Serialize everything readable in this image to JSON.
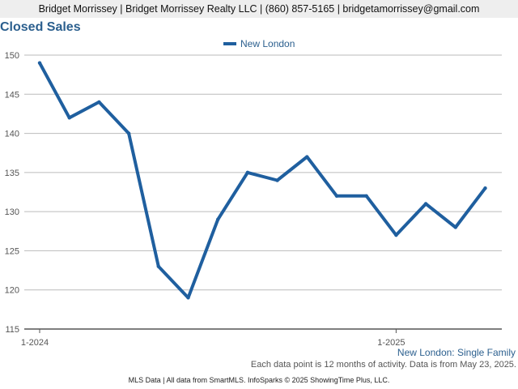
{
  "header": {
    "text": "Bridget Morrissey | Bridget Morrissey Realty LLC | (860) 857-5165 | bridgetamorrissey@gmail.com"
  },
  "footer": {
    "note": "Each data point is 12 months of activity. Data is from May 23, 2025.",
    "source": "MLS Data | All data from SmartMLS. InfoSparks © 2025 ShowingTime Plus, LLC."
  },
  "colors": {
    "series": "#1f5f9f",
    "title": "#2b5f8e",
    "grid": "#bbbbbb"
  },
  "chart_data": {
    "type": "line",
    "title": "Closed Sales",
    "caption": "New London: Single Family",
    "xlabel": "",
    "ylabel": "",
    "x": [
      "2024-01",
      "2024-02",
      "2024-03",
      "2024-04",
      "2024-05",
      "2024-06",
      "2024-07",
      "2024-08",
      "2024-09",
      "2024-10",
      "2024-11",
      "2024-12",
      "2025-01",
      "2025-02",
      "2025-03",
      "2025-04"
    ],
    "x_tick_labels": [
      {
        "x": "2024-01",
        "label": "1-2024"
      },
      {
        "x": "2025-01",
        "label": "1-2025"
      }
    ],
    "series": [
      {
        "name": "New London",
        "values": [
          149,
          142,
          144,
          140,
          123,
          119,
          129,
          135,
          134,
          137,
          132,
          132,
          127,
          131,
          128,
          133
        ]
      }
    ],
    "ylim": [
      115,
      150
    ],
    "yticks": [
      115,
      120,
      125,
      130,
      135,
      140,
      145,
      150
    ],
    "grid": true,
    "legend": "top-center"
  }
}
